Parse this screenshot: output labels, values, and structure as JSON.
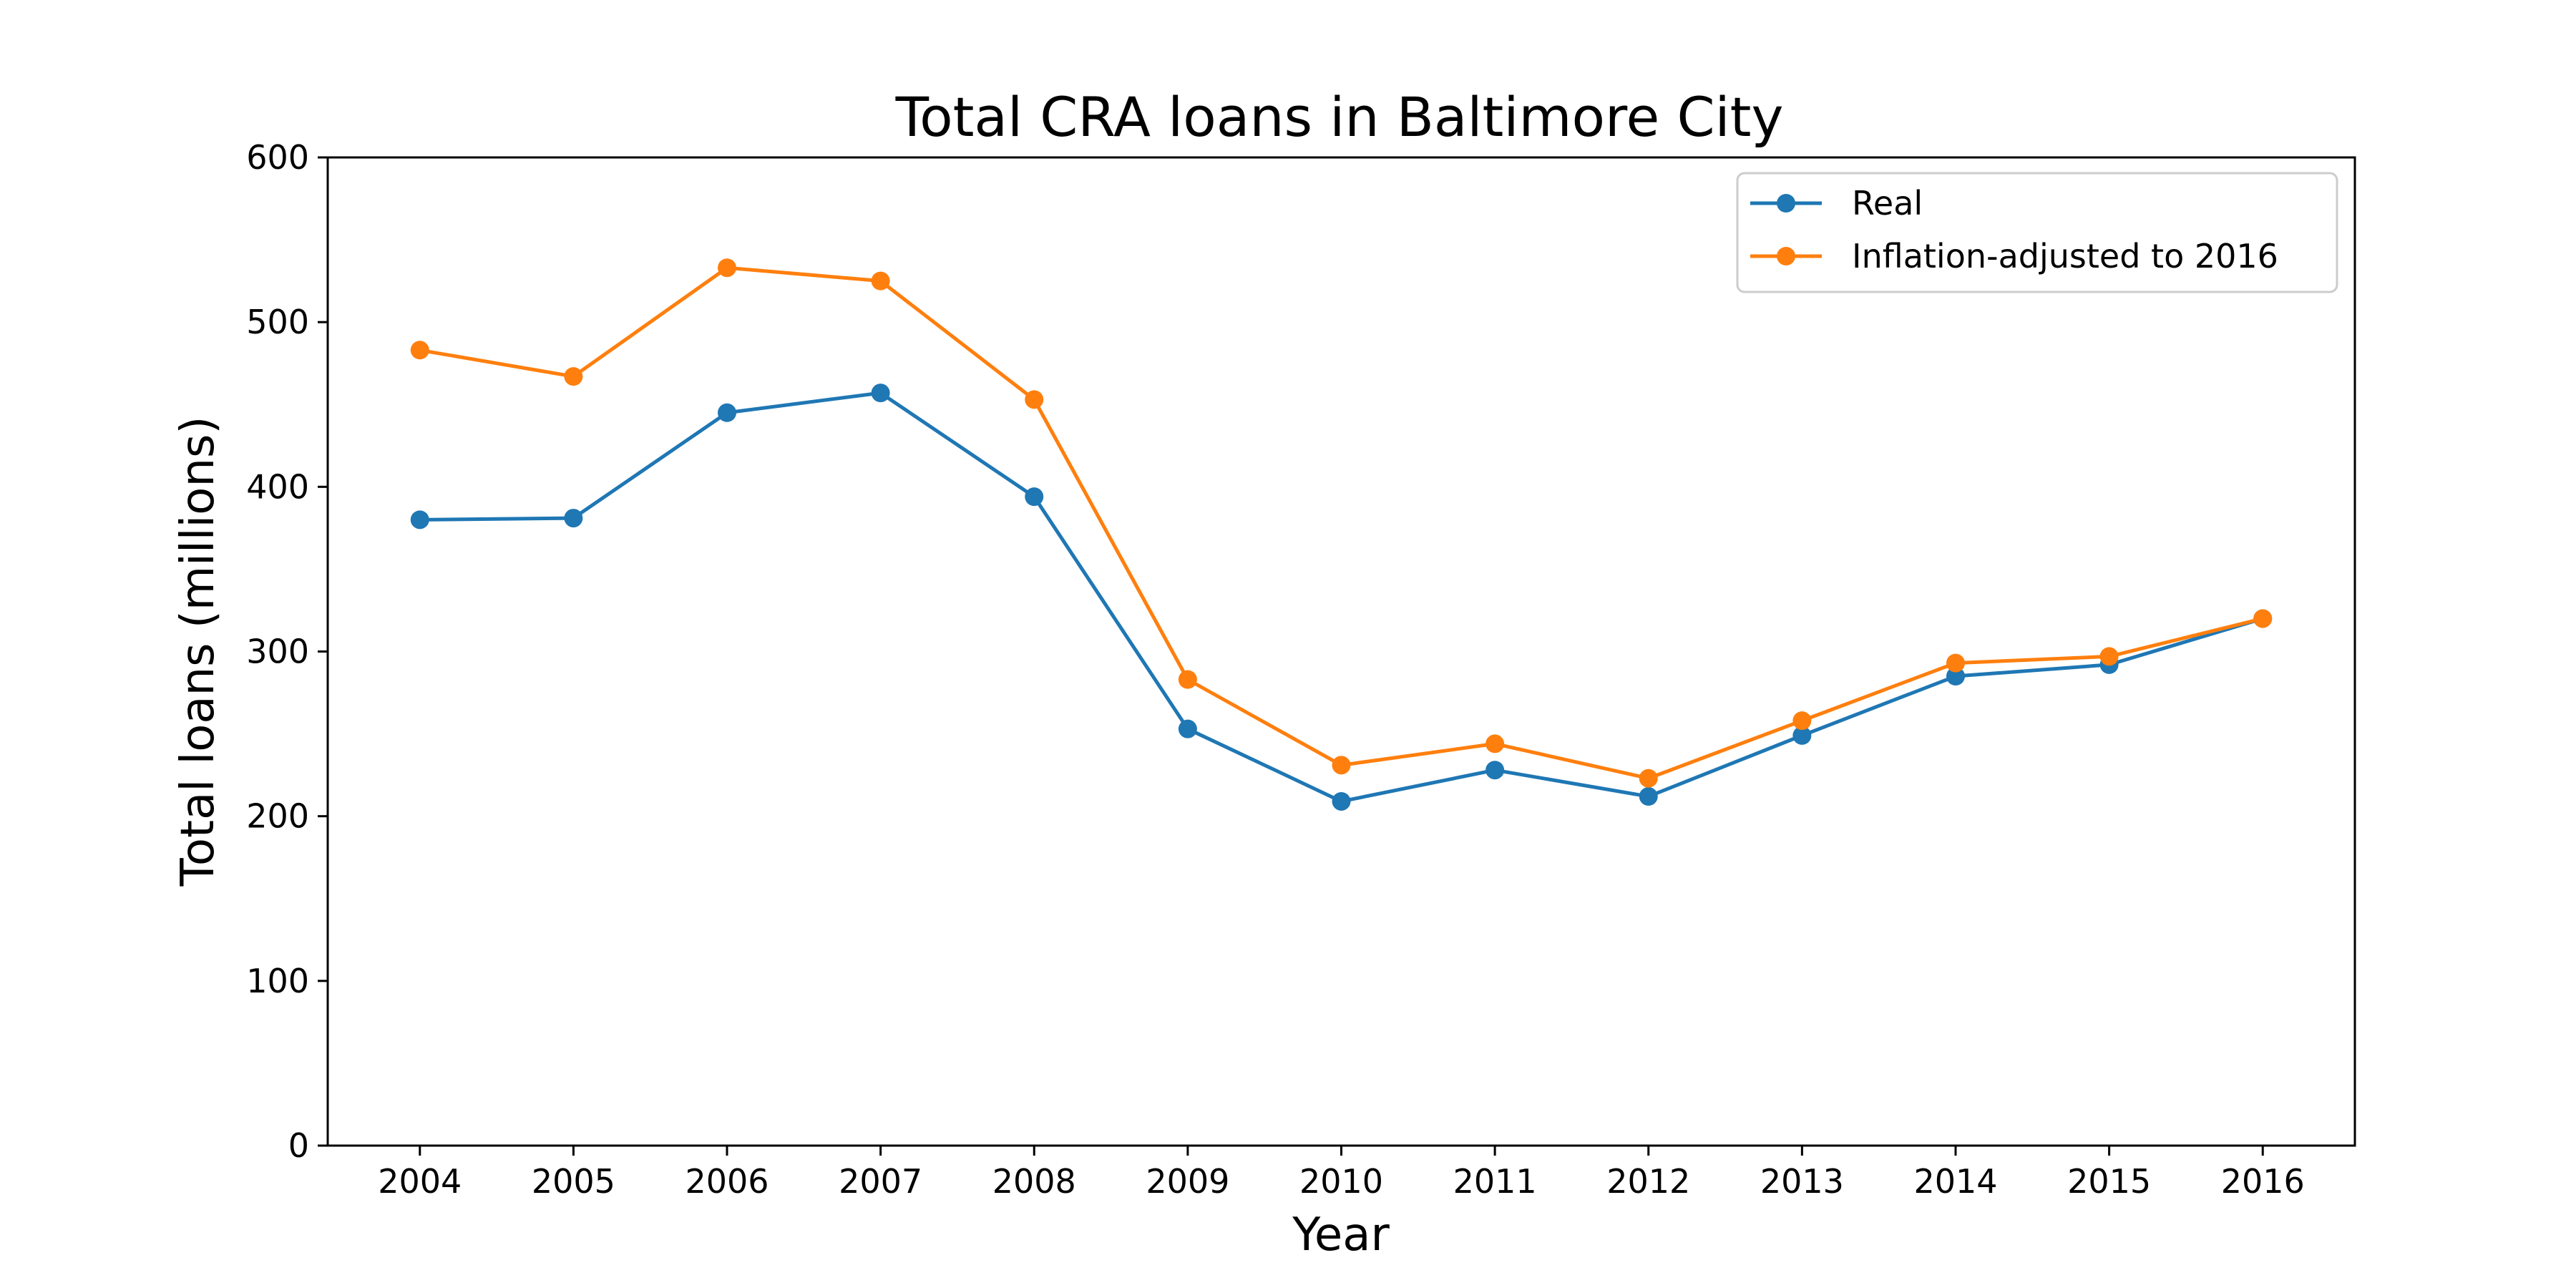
{
  "chart_data": {
    "type": "line",
    "title": "Total CRA loans in Baltimore City",
    "xlabel": "Year",
    "ylabel": "Total loans (millions)",
    "x": [
      2004,
      2005,
      2006,
      2007,
      2008,
      2009,
      2010,
      2011,
      2012,
      2013,
      2014,
      2015,
      2016
    ],
    "ylim": [
      0,
      600
    ],
    "yticks": [
      0,
      100,
      200,
      300,
      400,
      500,
      600
    ],
    "grid": false,
    "legend_position": "top-right",
    "series": [
      {
        "name": "Real",
        "color": "#1f77b4",
        "marker": "circle",
        "values": [
          380,
          381,
          445,
          457,
          394,
          253,
          209,
          228,
          212,
          249,
          285,
          292,
          320
        ]
      },
      {
        "name": "Inflation-adjusted to 2016",
        "color": "#ff7f0e",
        "marker": "circle",
        "values": [
          483,
          467,
          533,
          525,
          453,
          283,
          231,
          244,
          223,
          258,
          293,
          297,
          320
        ]
      }
    ]
  }
}
